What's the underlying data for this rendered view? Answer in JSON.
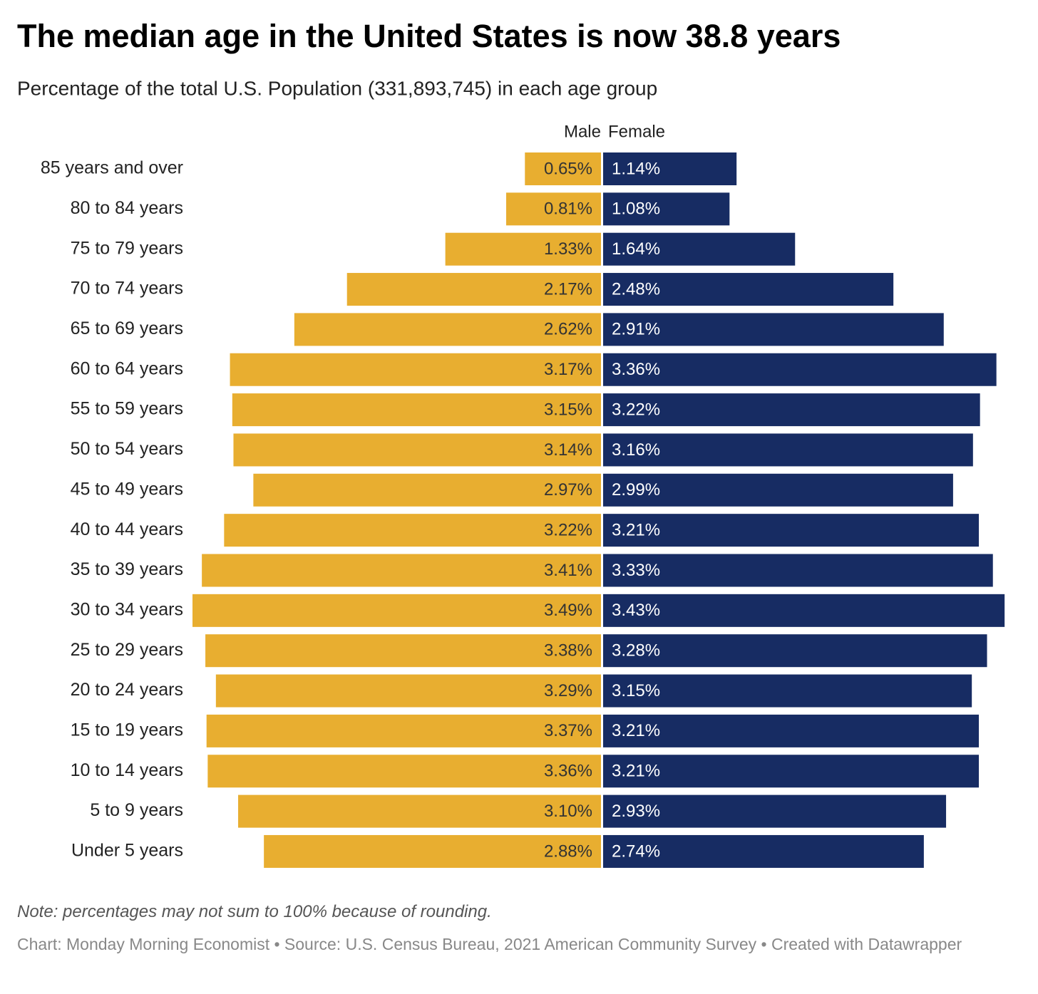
{
  "chart_data": {
    "type": "bar",
    "title": "The median age in the United States is now 38.8 years",
    "subtitle": "Percentage of the total U.S. Population (331,893,745) in each age group",
    "categories": [
      "85 years and over",
      "80 to 84 years",
      "75 to 79 years",
      "70 to 74 years",
      "65 to 69 years",
      "60 to 64 years",
      "55 to 59 years",
      "50 to 54 years",
      "45 to 49 years",
      "40 to 44 years",
      "35 to 39 years",
      "30 to 34 years",
      "25 to 29 years",
      "20 to 24 years",
      "15 to 19 years",
      "10 to 14 years",
      "5 to 9 years",
      "Under 5 years"
    ],
    "series": [
      {
        "name": "Male",
        "color": "#e8ae30",
        "values": [
          0.65,
          0.81,
          1.33,
          2.17,
          2.62,
          3.17,
          3.15,
          3.14,
          2.97,
          3.22,
          3.41,
          3.49,
          3.38,
          3.29,
          3.37,
          3.36,
          3.1,
          2.88
        ],
        "value_labels": [
          "0.65%",
          "0.81%",
          "1.33%",
          "2.17%",
          "2.62%",
          "3.17%",
          "3.15%",
          "3.14%",
          "2.97%",
          "3.22%",
          "3.41%",
          "3.49%",
          "3.38%",
          "3.29%",
          "3.37%",
          "3.36%",
          "3.10%",
          "2.88%"
        ]
      },
      {
        "name": "Female",
        "color": "#172c63",
        "values": [
          1.14,
          1.08,
          1.64,
          2.48,
          2.91,
          3.36,
          3.22,
          3.16,
          2.99,
          3.21,
          3.33,
          3.43,
          3.28,
          3.15,
          3.21,
          3.21,
          2.93,
          2.74
        ],
        "value_labels": [
          "1.14%",
          "1.08%",
          "1.64%",
          "2.48%",
          "2.91%",
          "3.36%",
          "3.22%",
          "3.16%",
          "2.99%",
          "3.21%",
          "3.33%",
          "3.43%",
          "3.28%",
          "3.15%",
          "3.21%",
          "3.21%",
          "2.93%",
          "2.74%"
        ]
      }
    ],
    "note": "Note: percentages may not sum to 100% because of rounding.",
    "source": "Chart: Monday Morning Economist • Source: U.S. Census Bureau, 2021 American Community Survey • Created with Datawrapper"
  }
}
